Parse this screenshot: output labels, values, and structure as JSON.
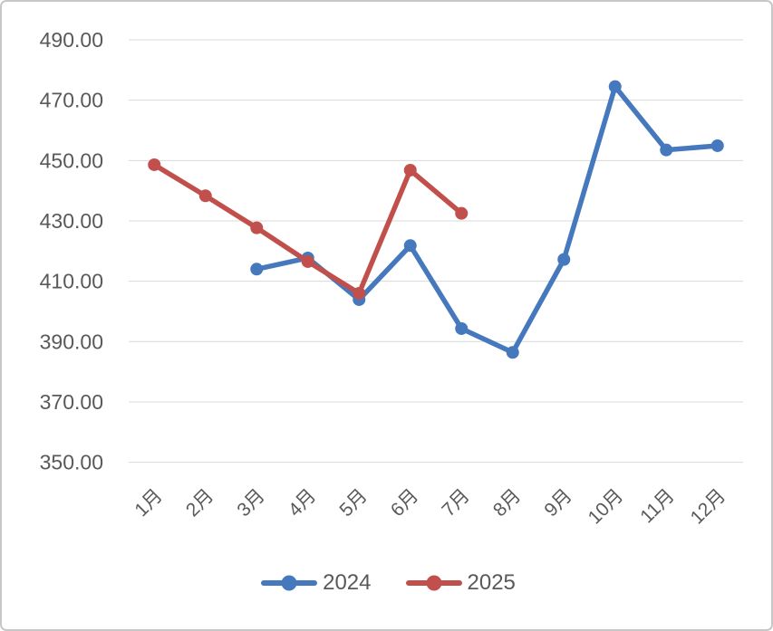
{
  "chart_data": {
    "type": "line",
    "title": "",
    "xlabel": "",
    "ylabel": "",
    "categories": [
      "1月",
      "2月",
      "3月",
      "4月",
      "5月",
      "6月",
      "7月",
      "8月",
      "9月",
      "10月",
      "11月",
      "12月"
    ],
    "series": [
      {
        "name": "2024",
        "color": "#4678BD",
        "values": [
          null,
          null,
          414.0,
          417.7,
          403.9,
          421.8,
          394.3,
          386.4,
          417.2,
          474.5,
          453.5,
          454.9
        ]
      },
      {
        "name": "2025",
        "color": "#C1504D",
        "values": [
          448.6,
          438.3,
          427.7,
          416.5,
          406.0,
          446.8,
          432.5,
          null,
          null,
          null,
          null,
          null
        ]
      }
    ],
    "ylim": [
      350,
      490
    ],
    "ytick_step": 20,
    "ytick_labels": [
      "350.00",
      "370.00",
      "390.00",
      "410.00",
      "430.00",
      "450.00",
      "470.00",
      "490.00"
    ],
    "grid": true,
    "grid_color": "#D9D9D9",
    "axis_label_color": "#595959",
    "legend_position": "bottom",
    "x_label_rotation_deg": -45
  },
  "legend": {
    "items": [
      {
        "label": "2024"
      },
      {
        "label": "2025"
      }
    ]
  }
}
